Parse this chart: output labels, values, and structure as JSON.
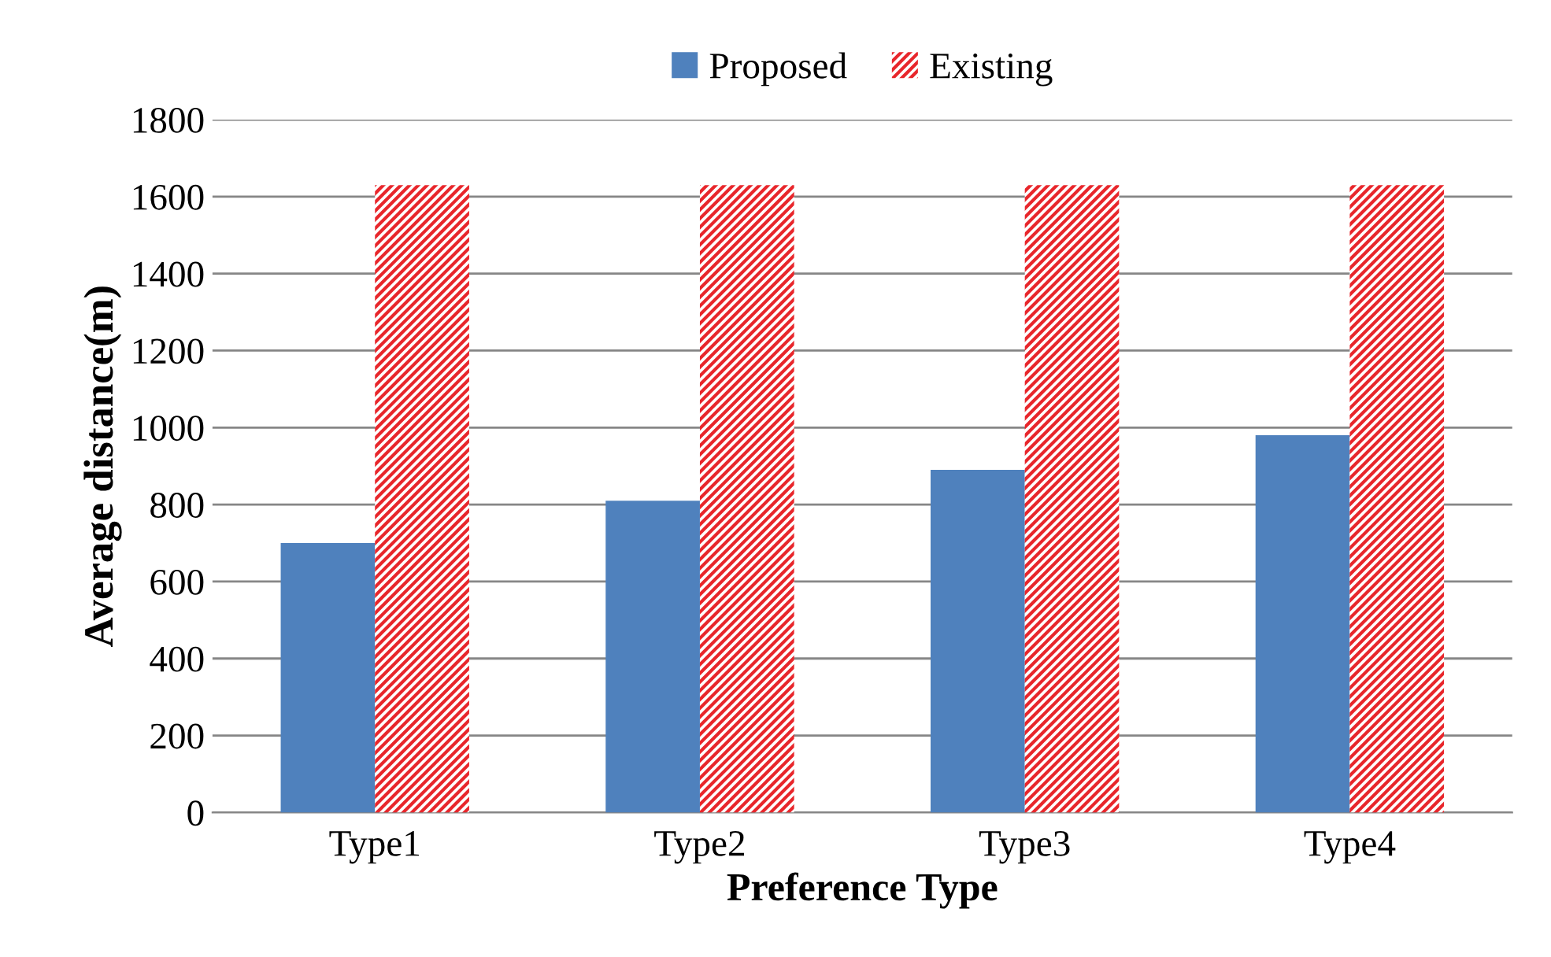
{
  "chart_data": {
    "type": "bar",
    "xlabel": "Preference Type",
    "ylabel": "Average distance(m)",
    "categories": [
      "Type1",
      "Type2",
      "Type3",
      "Type4"
    ],
    "series": [
      {
        "name": "Proposed",
        "color": "#4f81bd",
        "values": [
          700,
          810,
          890,
          980
        ]
      },
      {
        "name": "Existing",
        "color": "#e8262b",
        "values": [
          1630,
          1630,
          1630,
          1630
        ]
      }
    ],
    "ylim": [
      0,
      1800
    ],
    "yticks": [
      0,
      200,
      400,
      600,
      800,
      1000,
      1200,
      1400,
      1600,
      1800
    ],
    "grid": "y",
    "legend": "top"
  }
}
